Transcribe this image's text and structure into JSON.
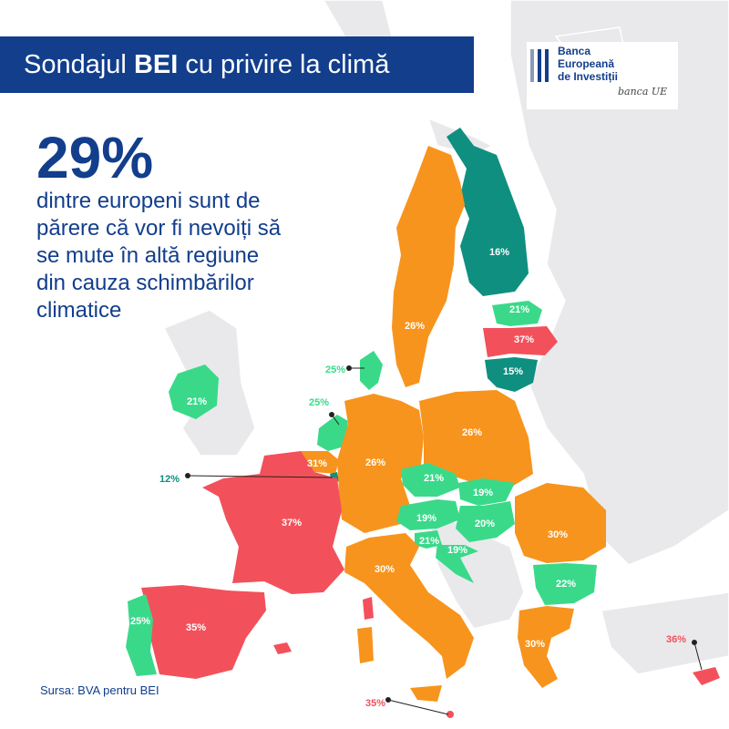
{
  "title": {
    "prefix": "Sondajul ",
    "bold": "BEI",
    "suffix": " cu privire la climă"
  },
  "logo": {
    "line1": "Banca",
    "line2": "Europeană",
    "line3": "de Investiții",
    "tagline": "banca UE"
  },
  "headline": {
    "value": "29%",
    "line1": "dintre europeni sunt de",
    "line2": "părere că vor fi nevoiți să",
    "line3": "se mute în altă regiune",
    "line4": "din cauza schimbărilor",
    "line5": "climatice"
  },
  "source": "Sursa: BVA pentru BEI",
  "colors": {
    "orange": "#f7941d",
    "teal": "#0f8f80",
    "green": "#3ad98a",
    "red": "#f2515b",
    "blue": "#123e8c",
    "land": "#e9e9eb"
  },
  "map_data": [
    {
      "country": "Finlanda",
      "label": "16%",
      "value": 16,
      "color": "teal"
    },
    {
      "country": "Suedia",
      "label": "26%",
      "value": 26,
      "color": "orange"
    },
    {
      "country": "Estonia",
      "label": "21%",
      "value": 21,
      "color": "green"
    },
    {
      "country": "Letonia",
      "label": "37%",
      "value": 37,
      "color": "red"
    },
    {
      "country": "Lituania",
      "label": "15%",
      "value": 15,
      "color": "teal"
    },
    {
      "country": "Danemarca",
      "label": "25%",
      "value": 25,
      "color": "green"
    },
    {
      "country": "Irlanda",
      "label": "21%",
      "value": 21,
      "color": "green"
    },
    {
      "country": "Țările de Jos",
      "label": "25%",
      "value": 25,
      "color": "green"
    },
    {
      "country": "Belgia",
      "label": "31%",
      "value": 31,
      "color": "orange"
    },
    {
      "country": "Luxemburg",
      "label": "12%",
      "value": 12,
      "color": "teal"
    },
    {
      "country": "Germania",
      "label": "26%",
      "value": 26,
      "color": "orange"
    },
    {
      "country": "Polonia",
      "label": "26%",
      "value": 26,
      "color": "orange"
    },
    {
      "country": "Cehia",
      "label": "21%",
      "value": 21,
      "color": "green"
    },
    {
      "country": "Slovacia",
      "label": "19%",
      "value": 19,
      "color": "green"
    },
    {
      "country": "Austria",
      "label": "19%",
      "value": 19,
      "color": "green"
    },
    {
      "country": "Ungaria",
      "label": "20%",
      "value": 20,
      "color": "green"
    },
    {
      "country": "Slovenia",
      "label": "21%",
      "value": 21,
      "color": "green"
    },
    {
      "country": "Croația",
      "label": "19%",
      "value": 19,
      "color": "green"
    },
    {
      "country": "România",
      "label": "30%",
      "value": 30,
      "color": "orange"
    },
    {
      "country": "Bulgaria",
      "label": "22%",
      "value": 22,
      "color": "green"
    },
    {
      "country": "Franța",
      "label": "37%",
      "value": 37,
      "color": "red"
    },
    {
      "country": "Spania",
      "label": "35%",
      "value": 35,
      "color": "red"
    },
    {
      "country": "Portugalia",
      "label": "25%",
      "value": 25,
      "color": "green"
    },
    {
      "country": "Italia",
      "label": "30%",
      "value": 30,
      "color": "orange"
    },
    {
      "country": "Grecia",
      "label": "30%",
      "value": 30,
      "color": "orange"
    },
    {
      "country": "Cipru",
      "label": "36%",
      "value": 36,
      "color": "red"
    },
    {
      "country": "Malta",
      "label": "35%",
      "value": 35,
      "color": "red"
    }
  ]
}
